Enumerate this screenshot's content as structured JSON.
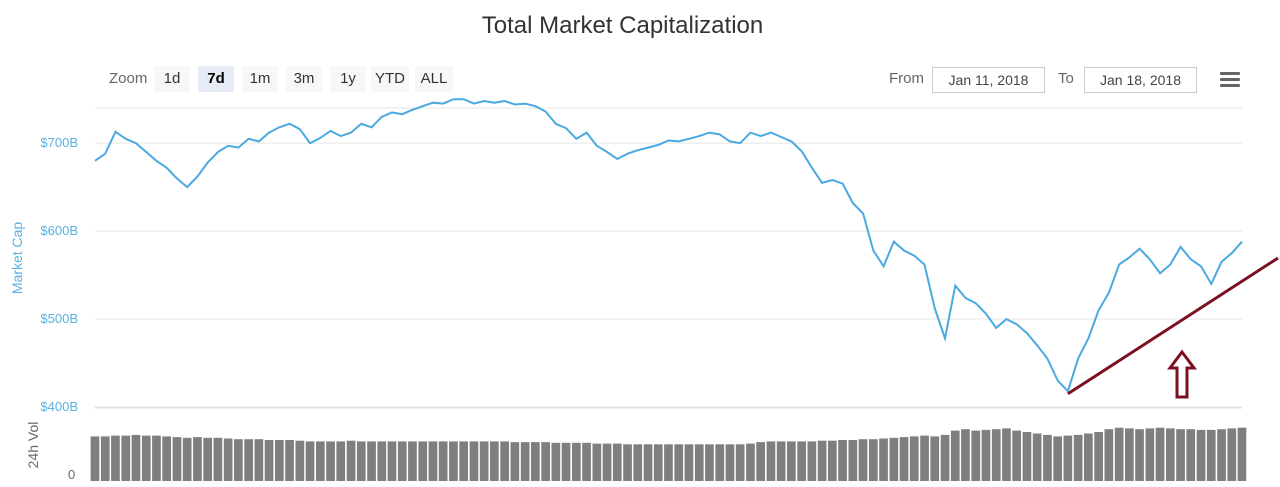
{
  "title": "Total Market Capitalization",
  "zoom": {
    "label": "Zoom",
    "buttons": [
      "1d",
      "7d",
      "1m",
      "3m",
      "1y",
      "YTD",
      "ALL"
    ],
    "active": "7d"
  },
  "range": {
    "from_label": "From",
    "from_value": "Jan 11, 2018",
    "to_label": "To",
    "to_value": "Jan 18, 2018"
  },
  "menu_icon": "hamburger-menu-icon",
  "colors": {
    "line": "#4aa9e0",
    "volume": "#7f7f7f",
    "trend_annotation": "#7b1020",
    "axis_text": "#5ab0e0"
  },
  "chart_data": {
    "type": "line",
    "title": "Total Market Capitalization",
    "ylabel": "Market Cap",
    "y_tick_labels": [
      "$400B",
      "$500B",
      "$600B",
      "$700B"
    ],
    "ylim": [
      400,
      740
    ],
    "grid": true,
    "x_range": [
      "Jan 11, 2018",
      "Jan 18, 2018"
    ],
    "series": [
      {
        "name": "Market Cap",
        "unit": "$B",
        "values": [
          680,
          688,
          713,
          705,
          700,
          690,
          680,
          672,
          660,
          650,
          662,
          678,
          690,
          697,
          695,
          705,
          702,
          712,
          718,
          722,
          716,
          700,
          706,
          714,
          708,
          712,
          722,
          718,
          730,
          735,
          733,
          738,
          742,
          746,
          745,
          750,
          750,
          745,
          748,
          746,
          748,
          744,
          745,
          742,
          736,
          722,
          717,
          705,
          712,
          697,
          690,
          682,
          688,
          692,
          695,
          698,
          703,
          702,
          705,
          708,
          712,
          710,
          702,
          700,
          712,
          708,
          712,
          707,
          702,
          691,
          672,
          655,
          658,
          654,
          632,
          620,
          578,
          560,
          588,
          578,
          572,
          562,
          512,
          478,
          538,
          524,
          518,
          506,
          490,
          500,
          494,
          484,
          470,
          455,
          430,
          418,
          455,
          478,
          510,
          530,
          562,
          570,
          580,
          568,
          552,
          562,
          582,
          568,
          560,
          540,
          565,
          575,
          588
        ]
      },
      {
        "name": "24h Vol",
        "values": [
          62,
          62,
          63,
          63,
          64,
          63,
          63,
          62,
          61,
          60,
          61,
          60,
          60,
          59,
          58,
          58,
          58,
          57,
          57,
          57,
          56,
          55,
          55,
          55,
          55,
          56,
          55,
          55,
          55,
          55,
          55,
          55,
          55,
          55,
          55,
          55,
          55,
          55,
          55,
          55,
          55,
          54,
          54,
          54,
          54,
          53,
          53,
          53,
          53,
          52,
          52,
          52,
          51,
          51,
          51,
          51,
          51,
          51,
          51,
          51,
          51,
          51,
          51,
          51,
          52,
          54,
          55,
          55,
          55,
          55,
          55,
          56,
          56,
          57,
          57,
          58,
          58,
          59,
          60,
          61,
          62,
          63,
          62,
          64,
          70,
          72,
          70,
          71,
          72,
          73,
          70,
          68,
          66,
          64,
          62,
          63,
          64,
          66,
          68,
          72,
          74,
          73,
          72,
          73,
          74,
          73,
          72,
          72,
          71,
          71,
          72,
          73,
          74
        ]
      }
    ],
    "annotations": [
      "trend line",
      "up arrow"
    ],
    "trend_line": {
      "from": {
        "index": 95,
        "value": 415
      },
      "to": {
        "index": 112,
        "value": 600
      }
    }
  }
}
